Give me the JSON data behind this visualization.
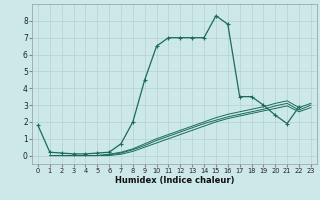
{
  "xlabel": "Humidex (Indice chaleur)",
  "bg_color": "#cce8e8",
  "grid_color": "#b8d4d4",
  "line_color": "#1a6b5a",
  "xlim": [
    -0.5,
    23.5
  ],
  "ylim": [
    -0.5,
    9.0
  ],
  "yticks": [
    0,
    1,
    2,
    3,
    4,
    5,
    6,
    7,
    8
  ],
  "xticks": [
    0,
    1,
    2,
    3,
    4,
    5,
    6,
    7,
    8,
    9,
    10,
    11,
    12,
    13,
    14,
    15,
    16,
    17,
    18,
    19,
    20,
    21,
    22,
    23
  ],
  "series": [
    {
      "x": [
        0,
        1,
        2,
        3,
        4,
        5,
        6,
        7,
        8,
        9,
        10,
        11,
        12,
        13,
        14,
        15,
        16,
        17,
        18,
        19,
        20,
        21,
        22
      ],
      "y": [
        1.8,
        0.2,
        0.15,
        0.1,
        0.1,
        0.15,
        0.2,
        0.7,
        2.0,
        4.5,
        6.5,
        7.0,
        7.0,
        7.0,
        7.0,
        8.3,
        7.8,
        3.5,
        3.5,
        3.0,
        2.4,
        1.9,
        2.9
      ],
      "marker": true
    },
    {
      "x": [
        1,
        2,
        3,
        4,
        5,
        6,
        7,
        8,
        9,
        10,
        11,
        12,
        13,
        14,
        15,
        16,
        17,
        18,
        19,
        20,
        21,
        22,
        23
      ],
      "y": [
        0,
        0,
        0,
        0,
        0,
        0,
        0.08,
        0.25,
        0.5,
        0.75,
        1.0,
        1.25,
        1.5,
        1.75,
        2.0,
        2.2,
        2.35,
        2.5,
        2.65,
        2.8,
        2.95,
        2.6,
        2.85
      ],
      "marker": false
    },
    {
      "x": [
        1,
        2,
        3,
        4,
        5,
        6,
        7,
        8,
        9,
        10,
        11,
        12,
        13,
        14,
        15,
        16,
        17,
        18,
        19,
        20,
        21,
        22,
        23
      ],
      "y": [
        0,
        0,
        0,
        0,
        0,
        0.05,
        0.15,
        0.35,
        0.6,
        0.9,
        1.15,
        1.4,
        1.65,
        1.9,
        2.1,
        2.3,
        2.45,
        2.6,
        2.75,
        2.95,
        3.1,
        2.7,
        3.0
      ],
      "marker": false
    },
    {
      "x": [
        1,
        2,
        3,
        4,
        5,
        6,
        7,
        8,
        9,
        10,
        11,
        12,
        13,
        14,
        15,
        16,
        17,
        18,
        19,
        20,
        21,
        22,
        23
      ],
      "y": [
        0,
        0,
        0,
        0,
        0,
        0.08,
        0.2,
        0.4,
        0.7,
        1.0,
        1.25,
        1.5,
        1.75,
        2.0,
        2.25,
        2.45,
        2.6,
        2.75,
        2.9,
        3.1,
        3.25,
        2.85,
        3.1
      ],
      "marker": false
    }
  ]
}
